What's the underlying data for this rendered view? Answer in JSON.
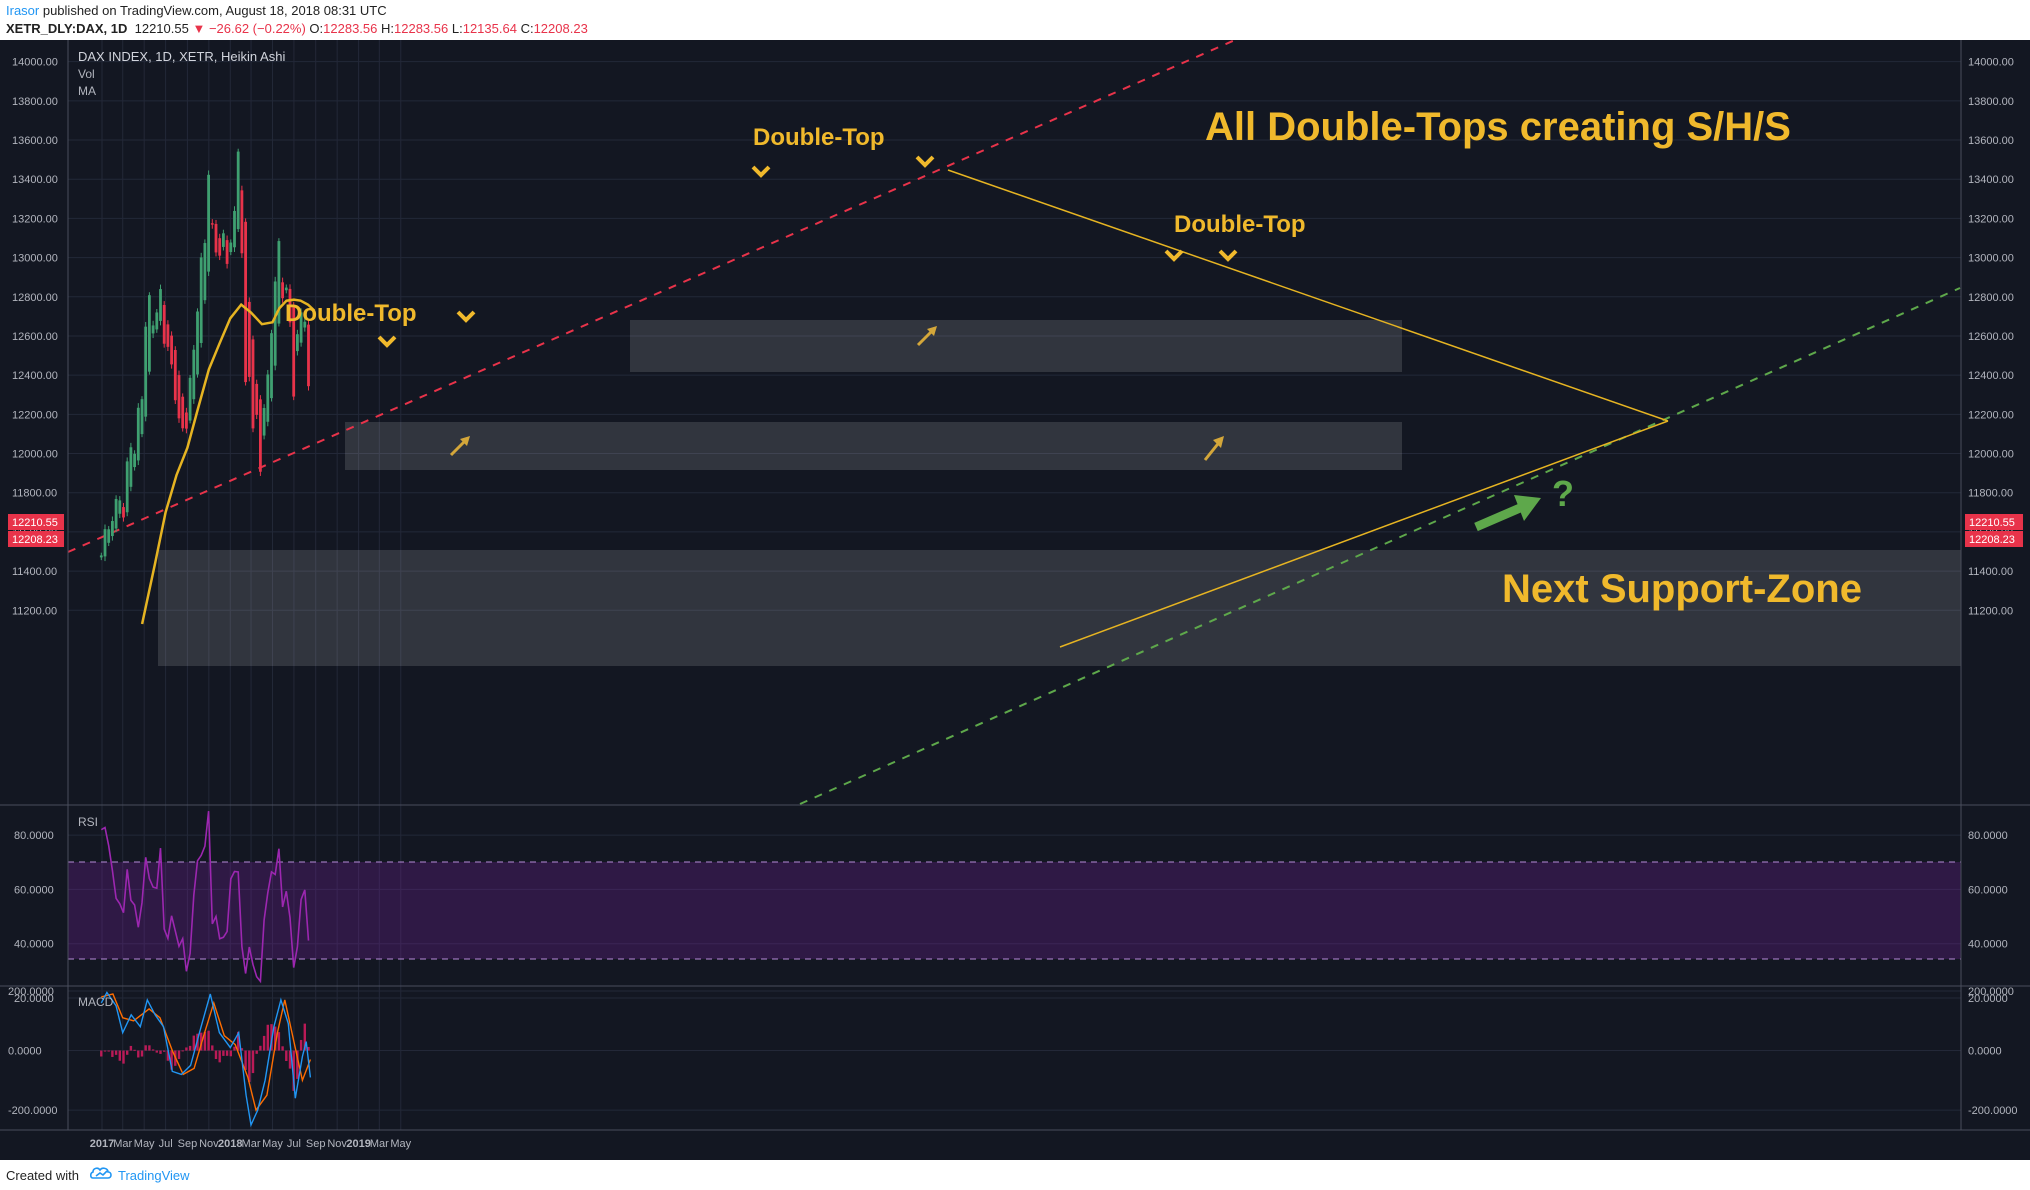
{
  "header": {
    "author": "Irasor",
    "published": " published on TradingView.com, August 18, 2018 08:31 UTC",
    "symbol": "XETR_DLY:DAX, 1D",
    "last": "12210.55",
    "change": "▼ −26.62 (−0.22%)",
    "o_label": "O:",
    "o": "12283.56",
    "h_label": "H:",
    "h": "12283.56",
    "l_label": "L:",
    "l": "12135.64",
    "c_label": "C:",
    "c": "12208.23"
  },
  "legend": {
    "title": "DAX INDEX, 1D, XETR, Heikin Ashi",
    "vol": "Vol",
    "ma": "MA"
  },
  "price_tags": {
    "last": "12210.55",
    "close": "12208.23"
  },
  "annotations": {
    "headline": "All Double-Tops creating S/H/S",
    "double_top_1": "Double-Top",
    "double_top_2": "Double-Top",
    "double_top_3": "Double-Top",
    "support_zone": "Next Support-Zone",
    "question": "?"
  },
  "panes": {
    "rsi_label": "RSI",
    "macd_label": "MACD"
  },
  "footer": {
    "created_with": "Created with",
    "brand": "TradingView"
  },
  "colors": {
    "background": "#131722",
    "bull": "#3fa071",
    "bear": "#e8334a",
    "ma": "#e6b422",
    "annotation": "#f0b92c",
    "rsi": "#9c27b0",
    "macd": "#2196f3",
    "signal": "#ff6d00"
  },
  "chart_data": [
    {
      "type": "candlestick",
      "title": "DAX INDEX, 1D, XETR, Heikin Ashi",
      "x_ticks": [
        "2017",
        "Mar",
        "May",
        "Jul",
        "Sep",
        "Nov",
        "2018",
        "Mar",
        "May",
        "Jul",
        "Sep",
        "Nov",
        "2019",
        "Mar",
        "May"
      ],
      "y_ticks": [
        "14000.00",
        "13800.00",
        "13600.00",
        "13400.00",
        "13200.00",
        "13000.00",
        "12800.00",
        "12600.00",
        "12400.00",
        "12200.00",
        "12000.00",
        "11800.00",
        "11600.00",
        "11400.00",
        "11200.00"
      ],
      "ylim": [
        11130,
        14080
      ],
      "series": [
        {
          "name": "Close",
          "points": [
            [
              "2016-12-30",
              11480
            ],
            [
              "2017-01-10",
              11620
            ],
            [
              "2017-01-25",
              11610
            ],
            [
              "2017-02-05",
              11700
            ],
            [
              "2017-02-17",
              11860
            ],
            [
              "2017-02-28",
              11560
            ],
            [
              "2017-03-10",
              11920
            ],
            [
              "2017-03-22",
              12050
            ],
            [
              "2017-04-02",
              11960
            ],
            [
              "2017-04-15",
              12250
            ],
            [
              "2017-04-20",
              12020
            ],
            [
              "2017-04-28",
              12450
            ],
            [
              "2017-05-08",
              12720
            ],
            [
              "2017-05-16",
              12810
            ],
            [
              "2017-05-24",
              12640
            ],
            [
              "2017-06-05",
              12710
            ],
            [
              "2017-06-20",
              12880
            ],
            [
              "2017-06-30",
              12420
            ],
            [
              "2017-07-12",
              12620
            ],
            [
              "2017-07-20",
              12400
            ],
            [
              "2017-08-01",
              12220
            ],
            [
              "2017-08-15",
              12140
            ],
            [
              "2017-08-28",
              12100
            ],
            [
              "2017-09-10",
              12420
            ],
            [
              "2017-09-25",
              12600
            ],
            [
              "2017-10-10",
              13000
            ],
            [
              "2017-10-20",
              13050
            ],
            [
              "2017-11-02",
              13480
            ],
            [
              "2017-11-10",
              13180
            ],
            [
              "2017-11-20",
              13030
            ],
            [
              "2017-12-01",
              13000
            ],
            [
              "2017-12-12",
              13130
            ],
            [
              "2017-12-20",
              13000
            ],
            [
              "2017-12-29",
              12900
            ],
            [
              "2018-01-08",
              13300
            ],
            [
              "2018-01-16",
              13200
            ],
            [
              "2018-01-23",
              13560
            ],
            [
              "2018-02-01",
              13200
            ],
            [
              "2018-02-10",
              12400
            ],
            [
              "2018-02-20",
              12300
            ],
            [
              "2018-02-28",
              12480
            ],
            [
              "2018-03-05",
              12100
            ],
            [
              "2018-03-15",
              12280
            ],
            [
              "2018-03-26",
              11850
            ],
            [
              "2018-04-05",
              12200
            ],
            [
              "2018-04-15",
              12350
            ],
            [
              "2018-04-25",
              12550
            ],
            [
              "2018-05-05",
              12750
            ],
            [
              "2018-05-12",
              12990
            ],
            [
              "2018-05-22",
              13120
            ],
            [
              "2018-06-01",
              12700
            ],
            [
              "2018-06-08",
              12800
            ],
            [
              "2018-06-15",
              13050
            ],
            [
              "2018-06-22",
              12500
            ],
            [
              "2018-07-02",
              12250
            ],
            [
              "2018-07-10",
              12600
            ],
            [
              "2018-07-20",
              12700
            ],
            [
              "2018-07-27",
              12800
            ],
            [
              "2018-08-03",
              12620
            ],
            [
              "2018-08-10",
              12380
            ],
            [
              "2018-08-17",
              12208
            ]
          ]
        },
        {
          "name": "MA",
          "points": [
            [
              "2017-04-25",
              11130
            ],
            [
              "2017-06-01",
              11440
            ],
            [
              "2017-07-01",
              11700
            ],
            [
              "2017-08-01",
              11890
            ],
            [
              "2017-09-01",
              12030
            ],
            [
              "2017-10-01",
              12230
            ],
            [
              "2017-11-01",
              12430
            ],
            [
              "2017-12-01",
              12560
            ],
            [
              "2018-01-01",
              12690
            ],
            [
              "2018-02-01",
              12760
            ],
            [
              "2018-03-01",
              12720
            ],
            [
              "2018-04-01",
              12660
            ],
            [
              "2018-05-01",
              12670
            ],
            [
              "2018-05-20",
              12740
            ],
            [
              "2018-06-10",
              12780
            ],
            [
              "2018-07-01",
              12785
            ],
            [
              "2018-07-20",
              12780
            ],
            [
              "2018-08-10",
              12760
            ],
            [
              "2018-08-28",
              12730
            ]
          ]
        }
      ]
    },
    {
      "type": "line",
      "title": "RSI",
      "y_ticks": [
        "80.0000",
        "60.0000",
        "40.0000",
        "20.0000"
      ],
      "ylim": [
        20,
        90
      ],
      "bands": [
        30,
        70
      ],
      "series": [
        {
          "name": "RSI",
          "points": [
            [
              "2016-12-30",
              82
            ],
            [
              "2017-01-20",
              75
            ],
            [
              "2017-02-10",
              62
            ],
            [
              "2017-02-28",
              45
            ],
            [
              "2017-03-15",
              66
            ],
            [
              "2017-04-05",
              55
            ],
            [
              "2017-04-20",
              40
            ],
            [
              "2017-05-05",
              72
            ],
            [
              "2017-05-20",
              66
            ],
            [
              "2017-06-05",
              58
            ],
            [
              "2017-06-20",
              74
            ],
            [
              "2017-07-01",
              32
            ],
            [
              "2017-07-15",
              58
            ],
            [
              "2017-08-01",
              35
            ],
            [
              "2017-08-20",
              42
            ],
            [
              "2017-09-05",
              30
            ],
            [
              "2017-09-25",
              65
            ],
            [
              "2017-10-15",
              77
            ],
            [
              "2017-11-01",
              88
            ],
            [
              "2017-11-10",
              45
            ],
            [
              "2017-11-30",
              47
            ],
            [
              "2017-12-20",
              42
            ],
            [
              "2018-01-08",
              65
            ],
            [
              "2018-01-23",
              70
            ],
            [
              "2018-02-10",
              25
            ],
            [
              "2018-02-25",
              35
            ],
            [
              "2018-03-10",
              32
            ],
            [
              "2018-03-26",
              28
            ],
            [
              "2018-04-15",
              55
            ],
            [
              "2018-05-05",
              70
            ],
            [
              "2018-05-22",
              76
            ],
            [
              "2018-06-01",
              45
            ],
            [
              "2018-06-15",
              62
            ],
            [
              "2018-06-25",
              40
            ],
            [
              "2018-07-05",
              31
            ],
            [
              "2018-07-20",
              52
            ],
            [
              "2018-07-27",
              60
            ],
            [
              "2018-08-10",
              48
            ],
            [
              "2018-08-17",
              33
            ]
          ]
        }
      ]
    },
    {
      "type": "line",
      "title": "MACD",
      "y_ticks": [
        "200.0000",
        "0.0000",
        "-200.0000"
      ],
      "ylim": [
        -260,
        210
      ],
      "series": [
        {
          "name": "MACD",
          "points": [
            [
              "2016-12-30",
              160
            ],
            [
              "2017-01-15",
              195
            ],
            [
              "2017-02-10",
              150
            ],
            [
              "2017-03-01",
              60
            ],
            [
              "2017-03-25",
              120
            ],
            [
              "2017-04-20",
              80
            ],
            [
              "2017-05-10",
              170
            ],
            [
              "2017-06-01",
              120
            ],
            [
              "2017-06-25",
              80
            ],
            [
              "2017-07-20",
              -70
            ],
            [
              "2017-08-15",
              -80
            ],
            [
              "2017-09-10",
              -50
            ],
            [
              "2017-10-10",
              80
            ],
            [
              "2017-11-05",
              190
            ],
            [
              "2017-12-01",
              60
            ],
            [
              "2018-01-01",
              10
            ],
            [
              "2018-01-25",
              60
            ],
            [
              "2018-02-15",
              -150
            ],
            [
              "2018-03-01",
              -250
            ],
            [
              "2018-03-20",
              -200
            ],
            [
              "2018-04-10",
              -100
            ],
            [
              "2018-05-05",
              80
            ],
            [
              "2018-05-25",
              170
            ],
            [
              "2018-06-15",
              90
            ],
            [
              "2018-07-05",
              -160
            ],
            [
              "2018-07-25",
              -20
            ],
            [
              "2018-08-05",
              30
            ],
            [
              "2018-08-17",
              -90
            ]
          ]
        },
        {
          "name": "Signal",
          "points": [
            [
              "2016-12-30",
              180
            ],
            [
              "2017-02-01",
              190
            ],
            [
              "2017-03-01",
              110
            ],
            [
              "2017-04-01",
              100
            ],
            [
              "2017-05-15",
              140
            ],
            [
              "2017-06-15",
              110
            ],
            [
              "2017-07-20",
              0
            ],
            [
              "2017-08-20",
              -80
            ],
            [
              "2017-09-20",
              -60
            ],
            [
              "2017-10-20",
              60
            ],
            [
              "2017-11-15",
              160
            ],
            [
              "2017-12-15",
              50
            ],
            [
              "2018-01-15",
              20
            ],
            [
              "2018-02-20",
              -90
            ],
            [
              "2018-03-15",
              -200
            ],
            [
              "2018-04-15",
              -150
            ],
            [
              "2018-05-15",
              60
            ],
            [
              "2018-06-05",
              170
            ],
            [
              "2018-07-01",
              30
            ],
            [
              "2018-07-25",
              -100
            ],
            [
              "2018-08-17",
              -30
            ]
          ]
        }
      ]
    }
  ]
}
